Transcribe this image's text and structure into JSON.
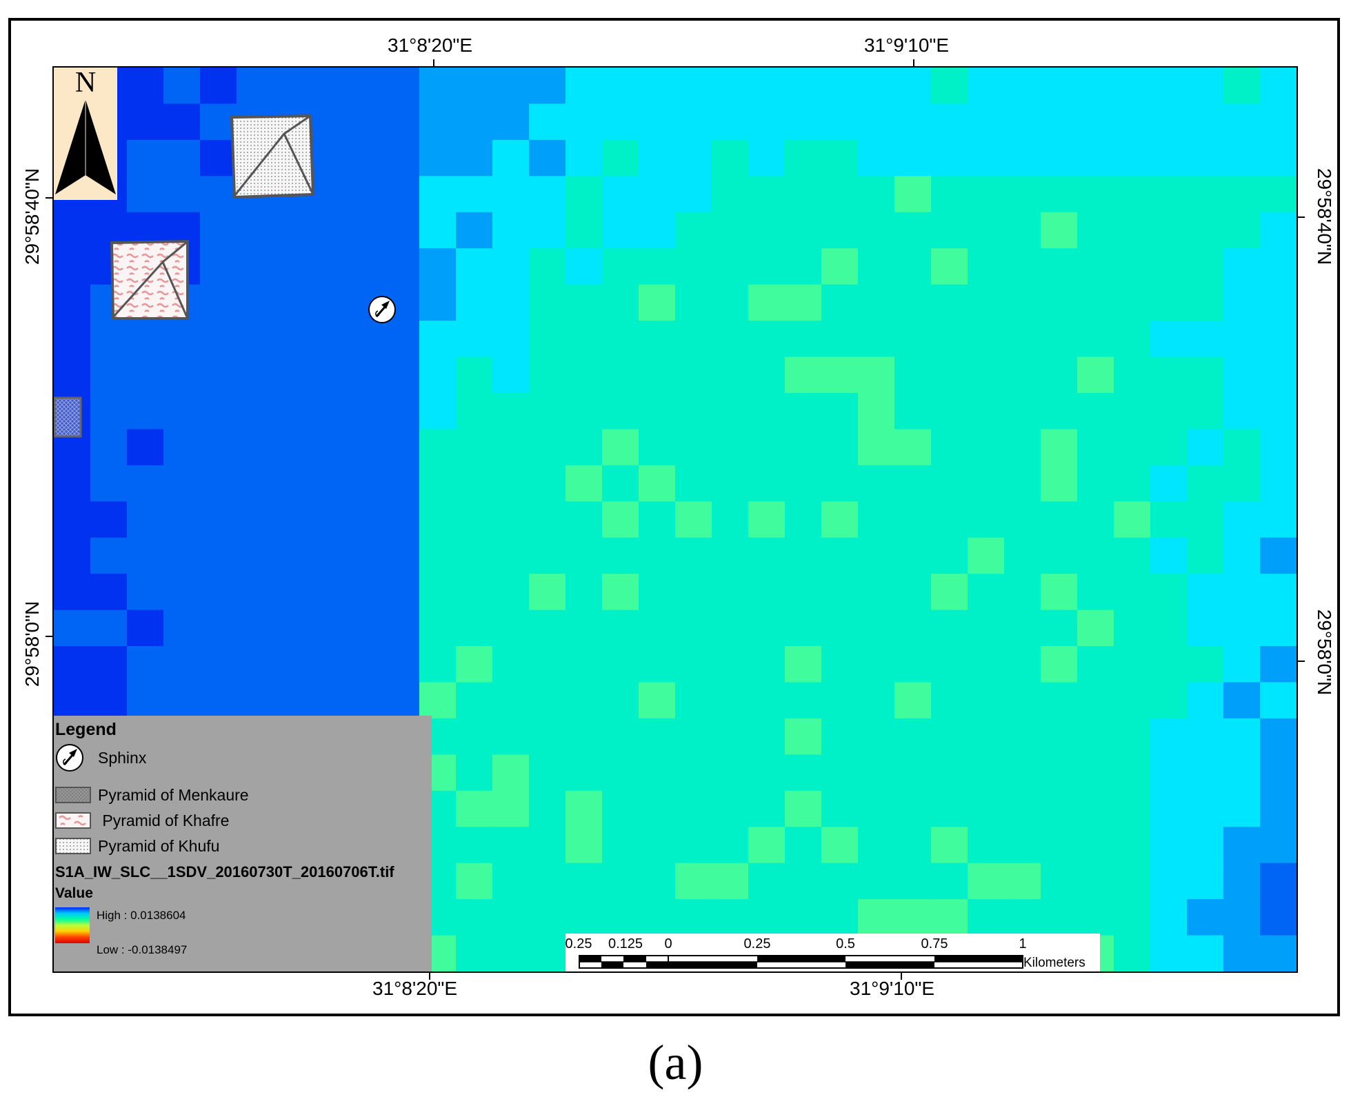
{
  "map": {
    "raster_name": "S1A_IW_SLC__1SDV_20160730T_20160706T.tif",
    "palette": [
      "#0032f0",
      "#0064f4",
      "#00a0fa",
      "#00e6ff",
      "#00f0c8",
      "#40fc9c",
      "#90ff80",
      "#c8ff50",
      "#f0ff10"
    ],
    "grid_cols": 34,
    "grid_rows": 25
  },
  "coordinates": {
    "top": [
      "31°8'20\"E",
      "31°9'10\"E"
    ],
    "bottom": [
      "31°8'20\"E",
      "31°9'10\"E"
    ],
    "left": [
      "29°58'40\"N",
      "29°58'0\"N"
    ],
    "right": [
      "29°58'40\"N",
      "29°58'0\"N"
    ]
  },
  "north_arrow": {
    "letter": "N",
    "icon": "north-arrow-icon"
  },
  "features": {
    "menkaure_icon": "crosshatch-square",
    "khafre_icon": "pyramid-squiggle-pattern",
    "khufu_icon": "pyramid-dot-pattern",
    "sphinx_icon": "sphinx-arrow-circle"
  },
  "legend": {
    "title": "Legend",
    "items": [
      {
        "label": "Sphinx",
        "icon": "sphinx-icon"
      },
      {
        "label": "Pyramid of Menkaure",
        "icon": "crosshatch-swatch"
      },
      {
        "label": " Pyramid of Khafre",
        "icon": "squiggle-swatch"
      },
      {
        "label": "Pyramid of Khufu",
        "icon": "dotted-swatch"
      }
    ],
    "raster_title": "S1A_IW_SLC__1SDV_20160730T_20160706T.tif",
    "value_label": "Value",
    "high": "High : 0.0138604",
    "low": "Low : -0.0138497",
    "ramp_colors": [
      "#0026ff",
      "#00c8ff",
      "#00ff9e",
      "#b8ff40",
      "#ffd200",
      "#ff4000",
      "#e00000"
    ]
  },
  "scalebar": {
    "labels": [
      "0.25",
      "0.125",
      "0",
      "0.25",
      "0.5",
      "0.75",
      "1"
    ],
    "units": "Kilometers"
  },
  "caption": "(a)"
}
